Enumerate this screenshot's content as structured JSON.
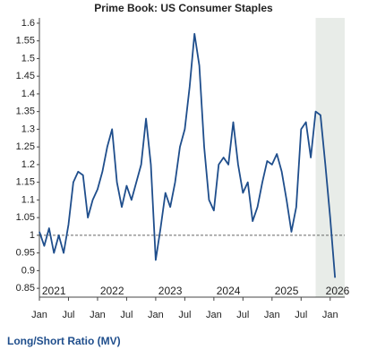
{
  "chart_data": {
    "type": "line",
    "title": "Prime Book: US Consumer Staples",
    "footer": "Long/Short Ratio (MV)",
    "x": [
      "2021-01",
      "2021-02",
      "2021-03",
      "2021-04",
      "2021-05",
      "2021-06",
      "2021-07",
      "2021-08",
      "2021-09",
      "2021-10",
      "2021-11",
      "2021-12",
      "2022-01",
      "2022-02",
      "2022-03",
      "2022-04",
      "2022-05",
      "2022-06",
      "2022-07",
      "2022-08",
      "2022-09",
      "2022-10",
      "2022-11",
      "2022-12",
      "2023-01",
      "2023-02",
      "2023-03",
      "2023-04",
      "2023-05",
      "2023-06",
      "2023-07",
      "2023-08",
      "2023-09",
      "2023-10",
      "2023-11",
      "2023-12",
      "2024-01",
      "2024-02",
      "2024-03",
      "2024-04",
      "2024-05",
      "2024-06",
      "2024-07",
      "2024-08",
      "2024-09",
      "2024-10",
      "2024-11",
      "2024-12",
      "2025-01",
      "2025-02",
      "2025-03",
      "2025-04",
      "2025-05",
      "2025-06",
      "2025-07",
      "2025-08",
      "2025-09",
      "2025-10",
      "2025-11",
      "2025-12",
      "2026-01",
      "2026-02"
    ],
    "series": [
      {
        "name": "Long/Short Ratio (MV)",
        "color": "#1f4e8c",
        "values": [
          1.01,
          0.97,
          1.02,
          0.95,
          1.0,
          0.95,
          1.03,
          1.15,
          1.18,
          1.17,
          1.05,
          1.1,
          1.13,
          1.18,
          1.25,
          1.3,
          1.15,
          1.08,
          1.14,
          1.1,
          1.15,
          1.2,
          1.33,
          1.2,
          0.93,
          1.02,
          1.12,
          1.08,
          1.15,
          1.25,
          1.3,
          1.42,
          1.57,
          1.48,
          1.25,
          1.1,
          1.07,
          1.2,
          1.22,
          1.2,
          1.32,
          1.2,
          1.12,
          1.15,
          1.04,
          1.08,
          1.15,
          1.21,
          1.2,
          1.23,
          1.18,
          1.1,
          1.01,
          1.08,
          1.3,
          1.32,
          1.22,
          1.35,
          1.34,
          1.2,
          1.05,
          0.88
        ]
      }
    ],
    "xlim": [
      "2021-01",
      "2026-04"
    ],
    "xticks": [
      {
        "value": "2021-01",
        "label": "Jan"
      },
      {
        "value": "2021-07",
        "label": "Jul"
      },
      {
        "value": "2022-01",
        "label": "Jan"
      },
      {
        "value": "2022-07",
        "label": "Jul"
      },
      {
        "value": "2023-01",
        "label": "Jan"
      },
      {
        "value": "2023-07",
        "label": "Jul"
      },
      {
        "value": "2024-01",
        "label": "Jan"
      },
      {
        "value": "2024-07",
        "label": "Jul"
      },
      {
        "value": "2025-01",
        "label": "Jan"
      },
      {
        "value": "2025-07",
        "label": "Jul"
      },
      {
        "value": "2026-01",
        "label": "Jan"
      }
    ],
    "year_labels": [
      "2021",
      "2022",
      "2023",
      "2024",
      "2025",
      "2026"
    ],
    "ylim": [
      0.825,
      1.615
    ],
    "yticks": [
      0.85,
      0.9,
      0.95,
      1,
      1.05,
      1.1,
      1.15,
      1.2,
      1.25,
      1.3,
      1.35,
      1.4,
      1.45,
      1.5,
      1.55,
      1.6
    ],
    "reference_line": 1,
    "shaded_from": "2025-10",
    "grid": false
  }
}
